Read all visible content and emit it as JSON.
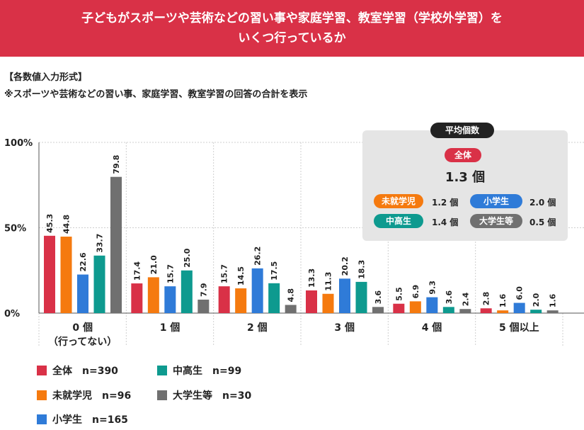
{
  "header": {
    "title": "子どもがスポーツや芸術などの習い事や家庭学習、教室学習（学校外学習）を\nいくつ行っているか"
  },
  "notes": {
    "line1": "【各数値入力形式】",
    "line2": "※スポーツや芸術などの習い事、家庭学習、教室学習の回答の合計を表示"
  },
  "average": {
    "title": "平均個数",
    "overall_label": "全体",
    "overall_value": "1.3 個",
    "items": [
      {
        "label": "未就学児",
        "value": "1.2 個",
        "color": "#f57a0f"
      },
      {
        "label": "小学生",
        "value": "2.0 個",
        "color": "#2f7bd8"
      },
      {
        "label": "中高生",
        "value": "1.4 個",
        "color": "#0e9a8f"
      },
      {
        "label": "大学生等",
        "value": "0.5 個",
        "color": "#707070"
      }
    ]
  },
  "chart_data": {
    "type": "bar",
    "categories": [
      "0 個\n（行ってない）",
      "1 個",
      "2 個",
      "3 個",
      "4 個",
      "5 個以上"
    ],
    "y_ticks": [
      "0%",
      "50%",
      "100%"
    ],
    "ylim": [
      0,
      100
    ],
    "series": [
      {
        "name": "全体",
        "n": "n=390",
        "color": "#d93147",
        "values": [
          45.3,
          17.4,
          15.7,
          13.3,
          5.5,
          2.8
        ]
      },
      {
        "name": "未就学児",
        "n": "n=96",
        "color": "#f57a0f",
        "values": [
          44.8,
          21.0,
          14.5,
          11.3,
          6.9,
          1.6
        ]
      },
      {
        "name": "小学生",
        "n": "n=165",
        "color": "#2f7bd8",
        "values": [
          22.6,
          15.7,
          26.2,
          20.2,
          9.3,
          6.0
        ]
      },
      {
        "name": "中高生",
        "n": "n=99",
        "color": "#0e9a8f",
        "values": [
          33.7,
          25.0,
          17.5,
          18.3,
          3.6,
          2.0
        ]
      },
      {
        "name": "大学生等",
        "n": "n=30",
        "color": "#707070",
        "values": [
          79.8,
          7.9,
          4.8,
          3.6,
          2.4,
          1.6
        ]
      }
    ]
  }
}
